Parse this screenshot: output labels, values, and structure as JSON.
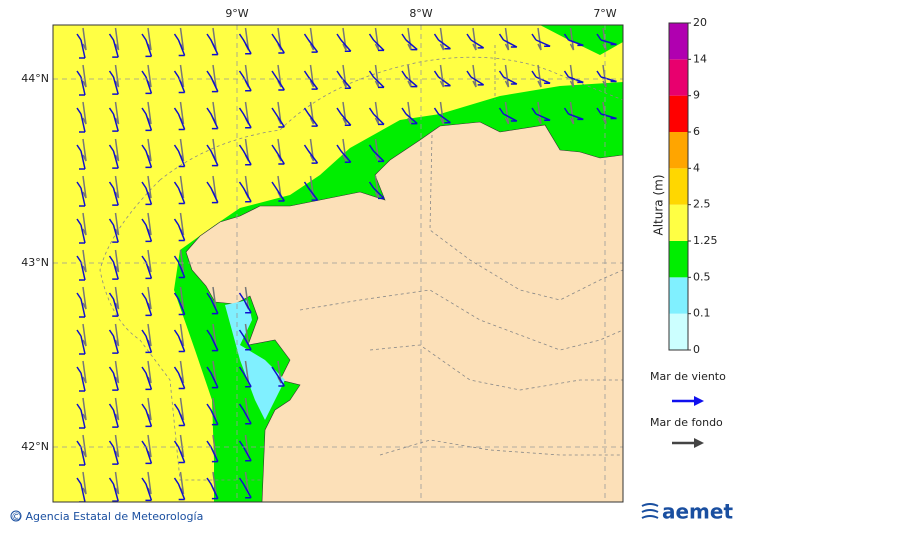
{
  "map": {
    "lon_ticks": [
      "9°W",
      "8°W",
      "7°W"
    ],
    "lat_ticks": [
      "44°N",
      "43°N",
      "42°N"
    ]
  },
  "colorbar": {
    "label": "Altura (m)",
    "ticks": [
      "0",
      "0.1",
      "0.5",
      "1.25",
      "2.5",
      "4",
      "6",
      "9",
      "14",
      "20"
    ],
    "colors": [
      "#ccffff",
      "#80f0ff",
      "#00ee00",
      "#ffff44",
      "#ffd700",
      "#ffa500",
      "#ff0000",
      "#e8006e",
      "#b000b0"
    ]
  },
  "legend": {
    "wind_sea": "Mar de viento",
    "swell": "Mar de fondo"
  },
  "footer": {
    "credit": "© Agencia Estatal de Meteorología",
    "logo": "aemet"
  }
}
